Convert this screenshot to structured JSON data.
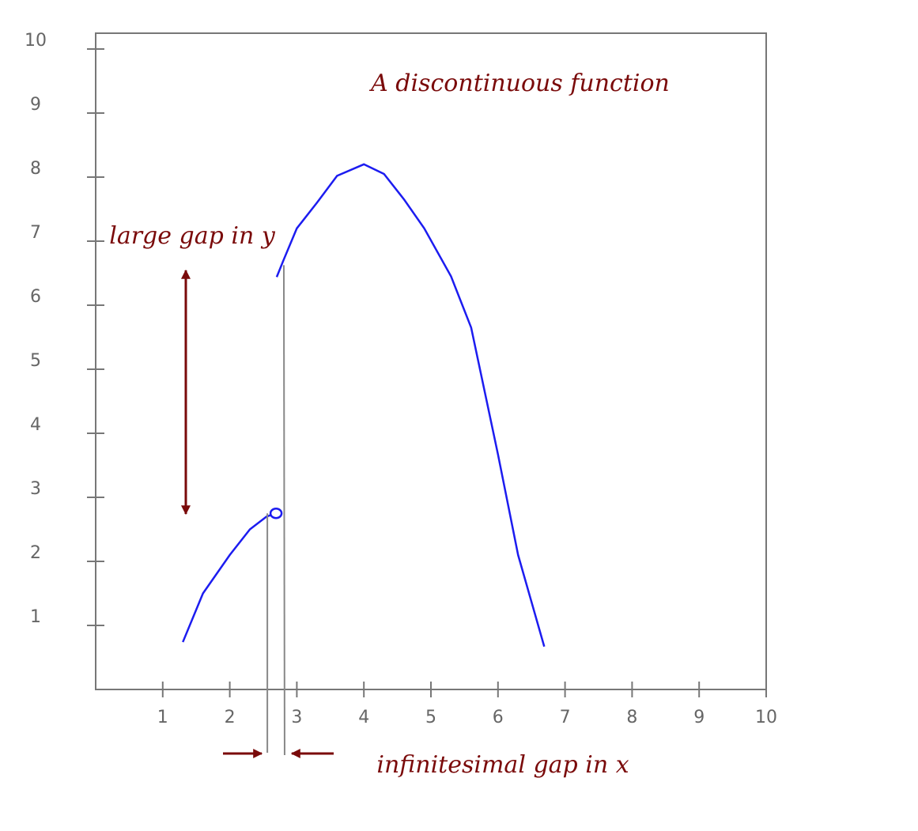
{
  "chart_data": {
    "type": "line",
    "title": "A discontinuous function",
    "annotations": [
      "large gap in y",
      "infinitesimal gap in x"
    ],
    "x": [
      1.3,
      1.6,
      2.0,
      2.3,
      2.55,
      2.69,
      2.69,
      2.7,
      2.8,
      3.0,
      3.3,
      3.6,
      4.0,
      4.3,
      4.6,
      4.9,
      5.3,
      5.6,
      6.0,
      6.3,
      6.69
    ],
    "series": [
      {
        "color": "#1c1cf0",
        "values": [
          0.74,
          1.5,
          2.1,
          2.5,
          2.7,
          2.75,
          null,
          6.44,
          6.7,
          7.2,
          7.6,
          8.02,
          8.2,
          8.05,
          7.65,
          7.2,
          6.45,
          5.65,
          3.67,
          2.1,
          0.67
        ]
      }
    ],
    "open_point": 5,
    "xlim": [
      0,
      10
    ],
    "ylim": [
      0,
      10
    ],
    "xticks": [
      1,
      2,
      3,
      4,
      5,
      6,
      7,
      8,
      9,
      10
    ],
    "yticks": [
      1,
      2,
      3,
      4,
      5,
      6,
      7,
      8,
      9,
      10
    ]
  }
}
